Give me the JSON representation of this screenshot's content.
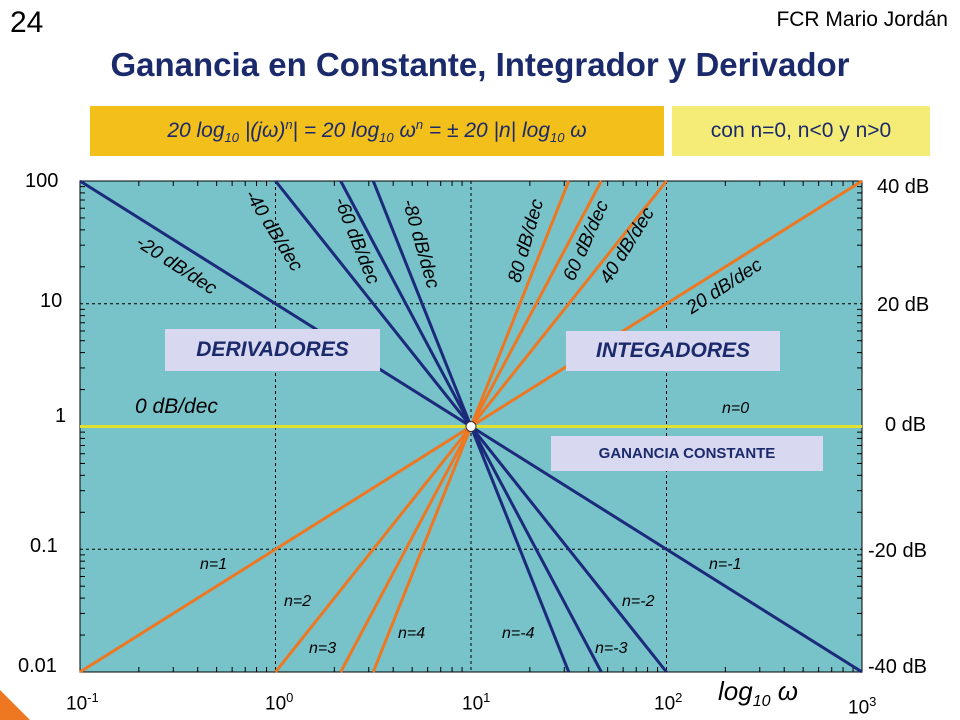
{
  "slide_number": "24",
  "author": "FCR Mario Jordán",
  "title": "Ganancia en Constante, Integrador y Derivador",
  "formula": {
    "p1": "20 log",
    "sub1": "10",
    "p2": " |(jω)",
    "sup1": "n",
    "p3": "| = 20 log",
    "sub2": "10",
    "p4": " ω",
    "sup2": "n",
    "p5": "  = ± 20 |n| log",
    "sub3": "10",
    "p6": " ω"
  },
  "cases_note": "con n=0, n<0 y n>0",
  "chart_data": {
    "type": "line",
    "x_axis": {
      "label": "log10 ω",
      "label_main": "log",
      "label_sub": "10",
      "label_sym": "ω",
      "scale": "log",
      "range": [
        0.1,
        1000
      ],
      "ticks": [
        {
          "base": "10",
          "exp": "-1"
        },
        {
          "base": "10",
          "exp": "0"
        },
        {
          "base": "10",
          "exp": "1"
        },
        {
          "base": "10",
          "exp": "2"
        },
        {
          "base": "10",
          "exp": "3"
        }
      ]
    },
    "y_axis_left": {
      "scale": "log",
      "range": [
        0.01,
        100
      ],
      "ticks": [
        "100",
        "10",
        "1",
        "0.1",
        "0.01"
      ]
    },
    "y_axis_right": {
      "ticks": [
        "40 dB",
        "20 dB",
        "0 dB",
        "-20 dB",
        "-40 dB"
      ]
    },
    "grid": true,
    "series": [
      {
        "name": "n=0",
        "slope_label": "0 dB/dec",
        "n": 0,
        "color": "#e0e030"
      },
      {
        "name": "n=1",
        "slope_label": "20 dB/dec",
        "n": 1,
        "color": "#ee7722"
      },
      {
        "name": "n=2",
        "slope_label": "40 dB/dec",
        "n": 2,
        "color": "#ee7722"
      },
      {
        "name": "n=3",
        "slope_label": "60 dB/dec",
        "n": 3,
        "color": "#ee7722"
      },
      {
        "name": "n=4",
        "slope_label": "80 dB/dec",
        "n": 4,
        "color": "#ee7722"
      },
      {
        "name": "n=-1",
        "slope_label": "-20 dB/dec",
        "n": -1,
        "color": "#1b2a7a"
      },
      {
        "name": "n=-2",
        "slope_label": "-40 dB/dec",
        "n": -2,
        "color": "#1b2a7a"
      },
      {
        "name": "n=-3",
        "slope_label": "-60 dB/dec",
        "n": -3,
        "color": "#1b2a7a"
      },
      {
        "name": "n=-4",
        "slope_label": "-80 dB/dec",
        "n": -4,
        "color": "#1b2a7a"
      }
    ],
    "regions": {
      "left": "DERIVADORES",
      "right": "INTEGADORES",
      "constant": "GANANCIA  CONSTANTE"
    },
    "colors": {
      "plot_bg": "#78c2c9",
      "positive_slope": "#ee7722",
      "negative_slope": "#1b2a7a",
      "zero_slope": "#e0e030"
    }
  }
}
